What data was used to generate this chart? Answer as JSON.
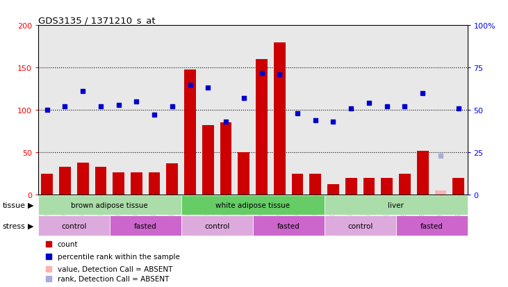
{
  "title": "GDS3135 / 1371210_s_at",
  "samples": [
    "GSM184414",
    "GSM184415",
    "GSM184416",
    "GSM184417",
    "GSM184418",
    "GSM184419",
    "GSM184420",
    "GSM184421",
    "GSM184422",
    "GSM184423",
    "GSM184424",
    "GSM184425",
    "GSM184426",
    "GSM184427",
    "GSM184428",
    "GSM184429",
    "GSM184430",
    "GSM184431",
    "GSM184432",
    "GSM184433",
    "GSM184434",
    "GSM184435",
    "GSM184436",
    "GSM184437"
  ],
  "count_values": [
    25,
    33,
    38,
    33,
    26,
    26,
    26,
    37,
    148,
    82,
    85,
    50,
    160,
    180,
    25,
    25,
    12,
    20,
    20,
    20,
    25,
    52,
    5,
    20
  ],
  "rank_values": [
    50,
    52,
    61,
    52,
    53,
    55,
    47,
    52,
    65,
    63,
    43,
    57,
    72,
    71,
    48,
    44,
    43,
    51,
    54,
    52,
    52,
    60,
    23,
    51
  ],
  "absent_count_indices": [
    22
  ],
  "absent_rank_indices": [
    22
  ],
  "bar_color": "#cc0000",
  "absent_bar_color": "#ffb0b0",
  "dot_color": "#0000cc",
  "absent_dot_color": "#aaaadd",
  "bg_color": "#e8e8e8",
  "tissue_groups": [
    {
      "label": "brown adipose tissue",
      "start": 0,
      "end": 7,
      "color": "#aaddaa"
    },
    {
      "label": "white adipose tissue",
      "start": 8,
      "end": 15,
      "color": "#66cc66"
    },
    {
      "label": "liver",
      "start": 16,
      "end": 23,
      "color": "#aaddaa"
    }
  ],
  "stress_groups": [
    {
      "label": "control",
      "start": 0,
      "end": 3,
      "color": "#ddaadd"
    },
    {
      "label": "fasted",
      "start": 4,
      "end": 7,
      "color": "#cc66cc"
    },
    {
      "label": "control",
      "start": 8,
      "end": 11,
      "color": "#ddaadd"
    },
    {
      "label": "fasted",
      "start": 12,
      "end": 15,
      "color": "#cc66cc"
    },
    {
      "label": "control",
      "start": 16,
      "end": 19,
      "color": "#ddaadd"
    },
    {
      "label": "fasted",
      "start": 20,
      "end": 23,
      "color": "#cc66cc"
    }
  ],
  "tissue_label": "tissue",
  "stress_label": "stress",
  "legend_items": [
    {
      "label": "count",
      "color": "#cc0000"
    },
    {
      "label": "percentile rank within the sample",
      "color": "#0000cc"
    },
    {
      "label": "value, Detection Call = ABSENT",
      "color": "#ffb0b0"
    },
    {
      "label": "rank, Detection Call = ABSENT",
      "color": "#aaaadd"
    }
  ],
  "right_yticklabels": [
    "0",
    "25",
    "50",
    "75",
    "100%"
  ]
}
